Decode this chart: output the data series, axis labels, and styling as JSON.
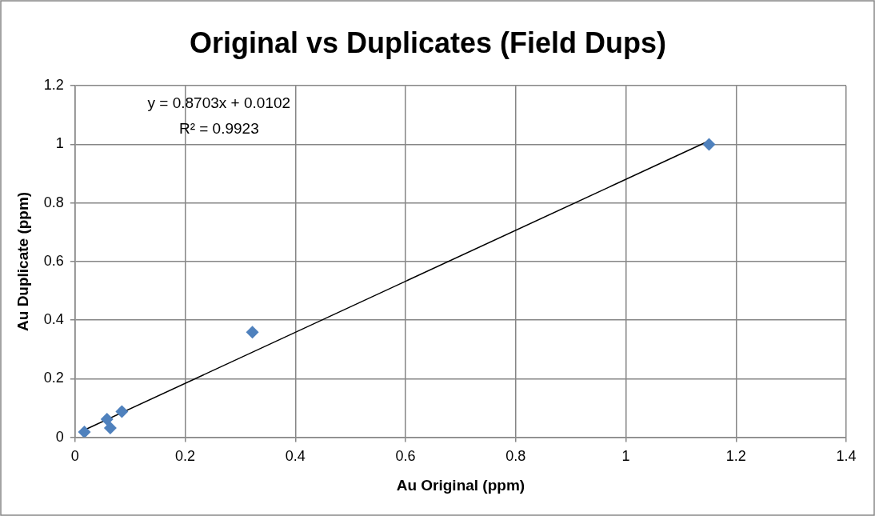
{
  "chart_data": {
    "type": "scatter",
    "title": "Original vs Duplicates (Field Dups)",
    "xlabel": "Au Original (ppm)",
    "ylabel": "Au Duplicate (ppm)",
    "x": [
      0.017,
      0.058,
      0.064,
      0.085,
      0.322,
      1.151
    ],
    "series": [
      {
        "type": "scatter",
        "color": "#4f81bd",
        "marker": "diamond",
        "values": [
          0.018,
          0.062,
          0.032,
          0.088,
          0.359,
          1.0
        ]
      },
      {
        "type": "line",
        "color": "#000000",
        "marker": "none",
        "line_style": "solid",
        "x": [
          0.017,
          1.151
        ],
        "values": [
          0.025,
          1.012
        ]
      }
    ],
    "annotations": [
      "y = 0.8703x + 0.0102",
      "R² = 0.9923"
    ],
    "xlim": [
      0,
      1.4
    ],
    "xticks": [
      0,
      0.2,
      0.4,
      0.6,
      0.8,
      1,
      1.2,
      1.4
    ],
    "ylim": [
      0,
      1.2
    ],
    "yticks": [
      0,
      0.2,
      0.4,
      0.6,
      0.8,
      1,
      1.2
    ],
    "grid": true,
    "legend": false
  }
}
